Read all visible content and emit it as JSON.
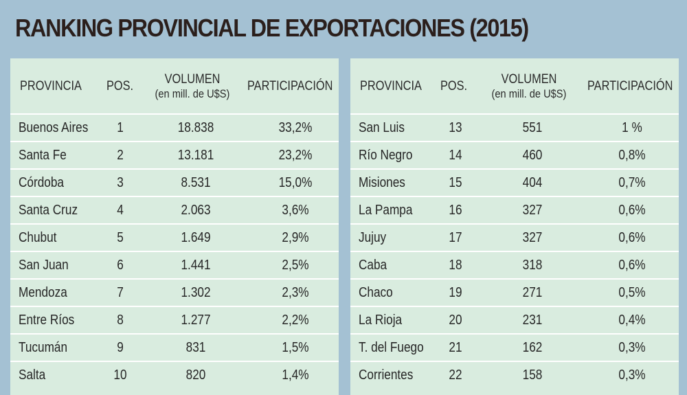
{
  "title": "RANKING PROVINCIAL DE EXPORTACIONES (2015)",
  "headers": {
    "provincia": "PROVINCIA",
    "pos": "POS.",
    "volumen_line1": "VOLUMEN",
    "volumen_line2": "(en mill. de U$S)",
    "participacion": "PARTICIPACIÓN"
  },
  "chart_data": {
    "type": "table",
    "title": "RANKING PROVINCIAL DE EXPORTACIONES (2015)",
    "columns": [
      "PROVINCIA",
      "POS.",
      "VOLUMEN (en mill. de U$S)",
      "PARTICIPACIÓN"
    ],
    "left_rows": [
      {
        "provincia": "Buenos Aires",
        "pos": "1",
        "volumen": "18.838",
        "participacion": "33,2%"
      },
      {
        "provincia": "Santa Fe",
        "pos": "2",
        "volumen": "13.181",
        "participacion": "23,2%"
      },
      {
        "provincia": "Córdoba",
        "pos": "3",
        "volumen": "8.531",
        "participacion": "15,0%"
      },
      {
        "provincia": "Santa Cruz",
        "pos": "4",
        "volumen": "2.063",
        "participacion": "3,6%"
      },
      {
        "provincia": "Chubut",
        "pos": "5",
        "volumen": "1.649",
        "participacion": "2,9%"
      },
      {
        "provincia": "San Juan",
        "pos": "6",
        "volumen": "1.441",
        "participacion": "2,5%"
      },
      {
        "provincia": "Mendoza",
        "pos": "7",
        "volumen": "1.302",
        "participacion": "2,3%"
      },
      {
        "provincia": "Entre Ríos",
        "pos": "8",
        "volumen": "1.277",
        "participacion": "2,2%"
      },
      {
        "provincia": "Tucumán",
        "pos": "9",
        "volumen": "831",
        "participacion": "1,5%"
      },
      {
        "provincia": "Salta",
        "pos": "10",
        "volumen": "820",
        "participacion": "1,4%"
      }
    ],
    "right_rows": [
      {
        "provincia": "San Luis",
        "pos": "13",
        "volumen": "551",
        "participacion": "1 %"
      },
      {
        "provincia": "Río Negro",
        "pos": "14",
        "volumen": "460",
        "participacion": "0,8%"
      },
      {
        "provincia": "Misiones",
        "pos": "15",
        "volumen": "404",
        "participacion": "0,7%"
      },
      {
        "provincia": "La Pampa",
        "pos": "16",
        "volumen": "327",
        "participacion": "0,6%"
      },
      {
        "provincia": "Jujuy",
        "pos": "17",
        "volumen": "327",
        "participacion": "0,6%"
      },
      {
        "provincia": "Caba",
        "pos": "18",
        "volumen": "318",
        "participacion": "0,6%"
      },
      {
        "provincia": "Chaco",
        "pos": "19",
        "volumen": "271",
        "participacion": "0,5%"
      },
      {
        "provincia": "La Rioja",
        "pos": "20",
        "volumen": "231",
        "participacion": "0,4%"
      },
      {
        "provincia": "T. del Fuego",
        "pos": "21",
        "volumen": "162",
        "participacion": "0,3%"
      },
      {
        "provincia": "Corrientes",
        "pos": "22",
        "volumen": "158",
        "participacion": "0,3%"
      }
    ]
  },
  "colors": {
    "background": "#a4c1d3",
    "panel": "#d9ecdf",
    "row_divider": "#ffffff",
    "title": "#2b1f1c"
  }
}
